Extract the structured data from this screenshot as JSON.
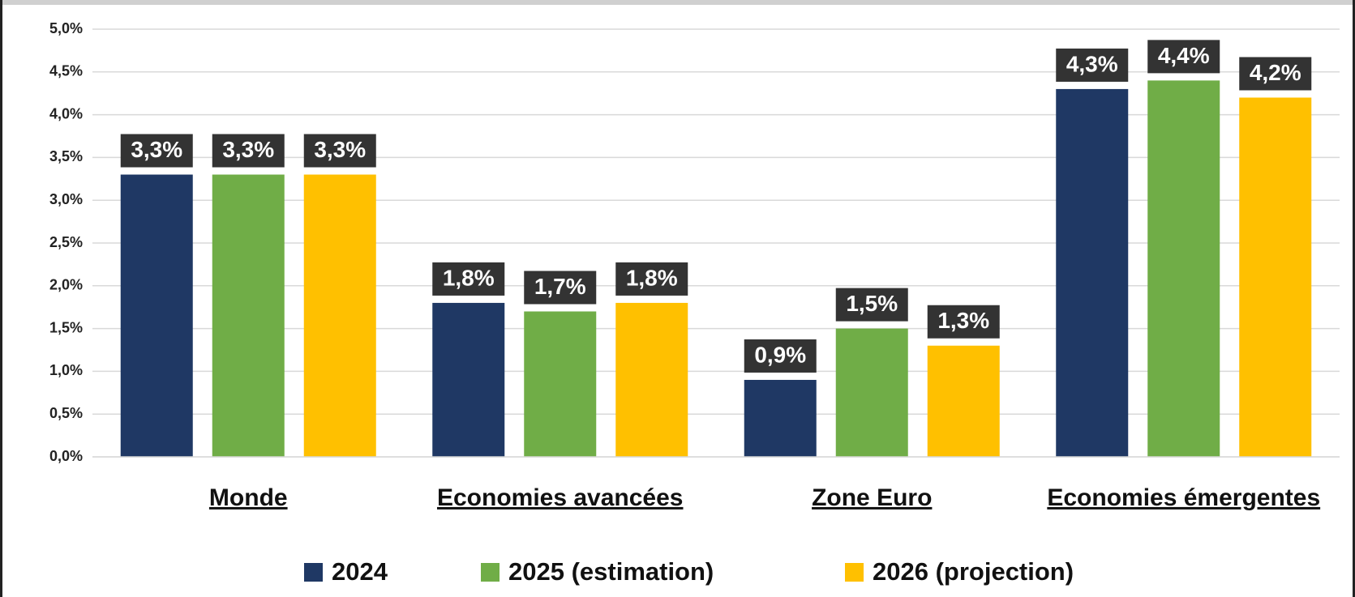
{
  "chart_data": {
    "type": "bar",
    "categories": [
      "Monde",
      "Economies avancées",
      "Zone Euro",
      "Economies émergentes"
    ],
    "series": [
      {
        "name": "2024",
        "color": "#1f3864",
        "values": [
          3.3,
          1.8,
          0.9,
          4.3
        ],
        "value_labels": [
          "3,3%",
          "1,8%",
          "0,9%",
          "4,3%"
        ]
      },
      {
        "name": "2025 (estimation)",
        "color": "#70ad47",
        "values": [
          3.3,
          1.7,
          1.5,
          4.4
        ],
        "value_labels": [
          "3,3%",
          "1,7%",
          "1,5%",
          "4,4%"
        ]
      },
      {
        "name": "2026 (projection)",
        "color": "#ffc000",
        "values": [
          3.3,
          1.8,
          1.3,
          4.2
        ],
        "value_labels": [
          "3,3%",
          "1,8%",
          "1,3%",
          "4,2%"
        ]
      }
    ],
    "ylim": [
      0,
      5
    ],
    "yticks": [
      {
        "value": 0,
        "label": "0,0%"
      },
      {
        "value": 0.5,
        "label": "0,5%"
      },
      {
        "value": 1,
        "label": "1,0%"
      },
      {
        "value": 1.5,
        "label": "1,5%"
      },
      {
        "value": 2,
        "label": "2,0%"
      },
      {
        "value": 2.5,
        "label": "2,5%"
      },
      {
        "value": 3,
        "label": "3,0%"
      },
      {
        "value": 3.5,
        "label": "3,5%"
      },
      {
        "value": 4,
        "label": "4,0%"
      },
      {
        "value": 4.5,
        "label": "4,5%"
      },
      {
        "value": 5,
        "label": "5,0%"
      }
    ],
    "grid": true,
    "legend": "bottom"
  }
}
